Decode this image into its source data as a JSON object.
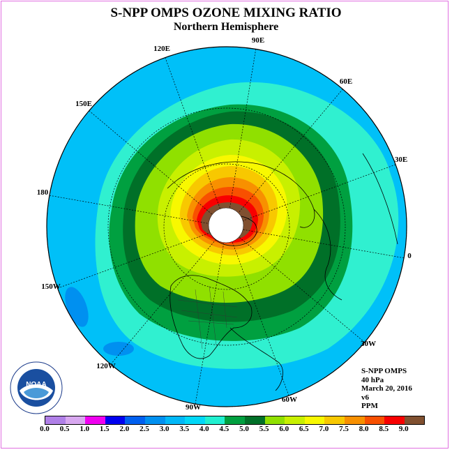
{
  "header": {
    "title": "S-NPP OMPS OZONE MIXING RATIO",
    "subtitle": "Northern Hemisphere"
  },
  "longitude_labels": [
    "90E",
    "60E",
    "30E",
    "0",
    "30W",
    "60W",
    "90W",
    "120W",
    "150W",
    "180",
    "150E",
    "120E"
  ],
  "info": {
    "instrument": "S-NPP OMPS",
    "level": "40 hPa",
    "date": "March 20, 2016",
    "version": "v6",
    "units": "PPM"
  },
  "colorbar": {
    "ticks": [
      "0.0",
      "0.5",
      "1.0",
      "1.5",
      "2.0",
      "2.5",
      "3.0",
      "3.5",
      "4.0",
      "4.5",
      "5.0",
      "5.5",
      "6.0",
      "6.5",
      "7.0",
      "7.5",
      "8.0",
      "8.5",
      "9.0"
    ],
    "colors": [
      "#b080e8",
      "#d8a8f0",
      "#f000f0",
      "#0000f0",
      "#0060f0",
      "#0090f0",
      "#00b8f8",
      "#00d8f8",
      "#20f0d0",
      "#00a040",
      "#007028",
      "#90e000",
      "#c8f000",
      "#f8f800",
      "#f8c800",
      "#f89000",
      "#f85000",
      "#f80000",
      "#805030"
    ]
  },
  "logo": {
    "text": "NOAA",
    "ring_text": "NATIONAL OCEANIC AND ATMOSPHERIC ADMINISTRATION · U.S. DEPARTMENT OF COMMERCE"
  }
}
